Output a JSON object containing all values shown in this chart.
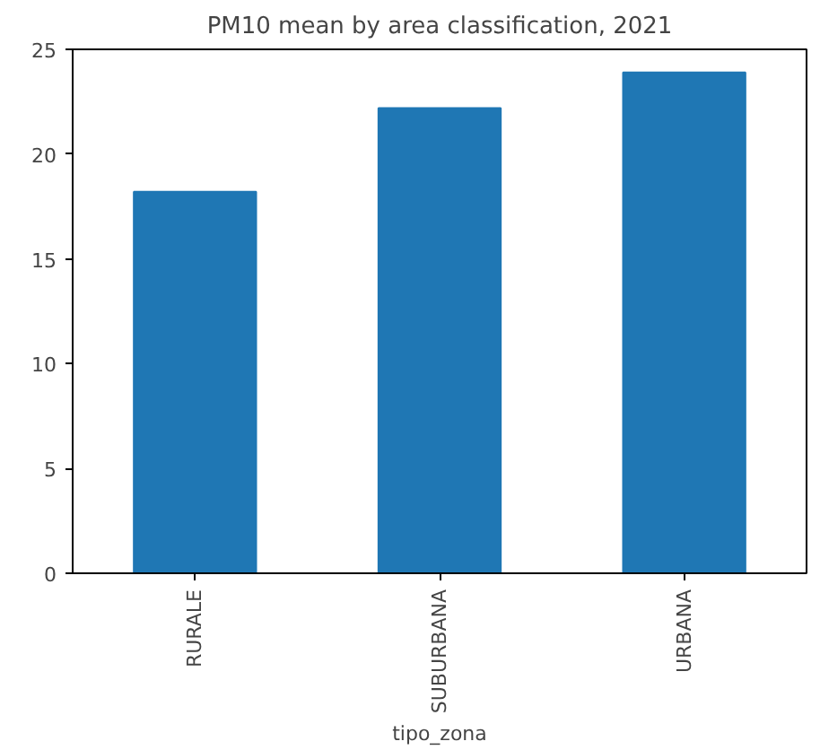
{
  "chart_data": {
    "type": "bar",
    "title": "PM10 mean by area classification, 2021",
    "xlabel": "tipo_zona",
    "categories": [
      "RURALE",
      "SUBURBANA",
      "URBANA"
    ],
    "values": [
      18.2,
      22.2,
      23.9
    ],
    "color": "#1f77b4",
    "ylim": [
      0,
      25
    ],
    "yticks": [
      0,
      5,
      10,
      15,
      20,
      25
    ],
    "grid": false
  }
}
